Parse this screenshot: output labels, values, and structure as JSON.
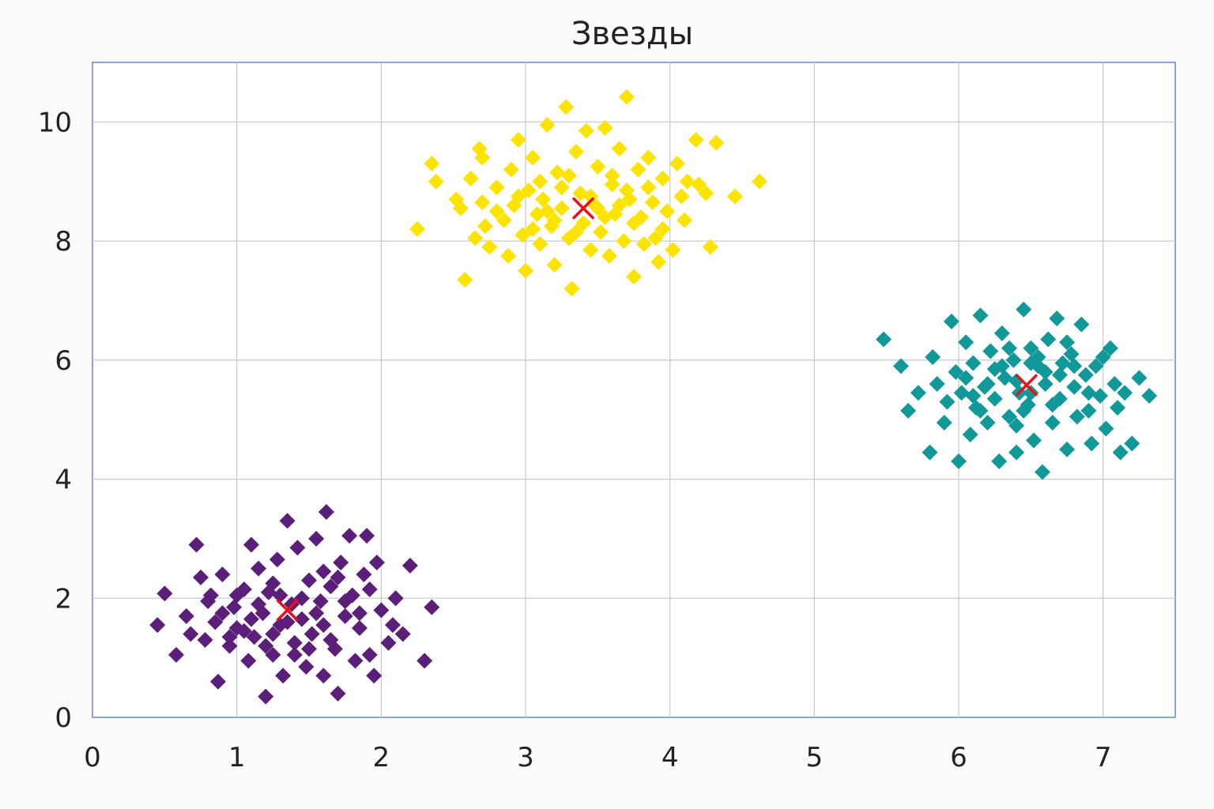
{
  "chart_data": {
    "type": "scatter",
    "title": "Звезды",
    "xlabel": "",
    "ylabel": "",
    "xlim": [
      0,
      7.5
    ],
    "ylim": [
      0,
      11
    ],
    "x_ticks": [
      0,
      1,
      2,
      3,
      4,
      5,
      6,
      7
    ],
    "y_ticks": [
      0,
      2,
      4,
      6,
      8,
      10
    ],
    "grid": true,
    "marker": "diamond",
    "centroid_marker": "x",
    "centroid_color": "#e8101a",
    "series": [
      {
        "color": "#5b1f7a",
        "center": [
          1.35,
          1.8
        ],
        "x_range": [
          0.45,
          2.35
        ],
        "y_range": [
          0.35,
          3.45
        ],
        "points": [
          [
            0.45,
            1.55
          ],
          [
            0.5,
            2.08
          ],
          [
            0.58,
            1.05
          ],
          [
            0.65,
            1.7
          ],
          [
            0.68,
            1.4
          ],
          [
            0.72,
            2.9
          ],
          [
            0.75,
            2.35
          ],
          [
            0.8,
            1.95
          ],
          [
            0.85,
            1.6
          ],
          [
            0.87,
            0.6
          ],
          [
            0.9,
            2.4
          ],
          [
            0.95,
            1.2
          ],
          [
            0.98,
            1.85
          ],
          [
            1.0,
            1.5
          ],
          [
            1.05,
            2.15
          ],
          [
            1.08,
            0.95
          ],
          [
            1.1,
            2.9
          ],
          [
            1.12,
            1.35
          ],
          [
            1.15,
            2.5
          ],
          [
            1.18,
            1.75
          ],
          [
            1.2,
            0.35
          ],
          [
            1.22,
            2.1
          ],
          [
            1.25,
            1.05
          ],
          [
            1.28,
            2.65
          ],
          [
            1.3,
            1.55
          ],
          [
            1.32,
            0.7
          ],
          [
            1.35,
            3.3
          ],
          [
            1.38,
            1.9
          ],
          [
            1.4,
            1.25
          ],
          [
            1.42,
            2.85
          ],
          [
            1.45,
            1.65
          ],
          [
            1.48,
            0.85
          ],
          [
            1.5,
            2.3
          ],
          [
            1.52,
            1.4
          ],
          [
            1.55,
            3.0
          ],
          [
            1.58,
            1.95
          ],
          [
            1.6,
            0.7
          ],
          [
            1.62,
            3.45
          ],
          [
            1.65,
            2.2
          ],
          [
            1.68,
            1.15
          ],
          [
            1.7,
            0.4
          ],
          [
            1.72,
            2.6
          ],
          [
            1.75,
            1.7
          ],
          [
            1.78,
            3.05
          ],
          [
            1.8,
            2.05
          ],
          [
            1.82,
            0.95
          ],
          [
            1.85,
            1.5
          ],
          [
            1.88,
            2.4
          ],
          [
            1.9,
            3.05
          ],
          [
            1.92,
            1.05
          ],
          [
            1.95,
            0.7
          ],
          [
            1.97,
            2.6
          ],
          [
            2.0,
            1.8
          ],
          [
            2.05,
            1.25
          ],
          [
            2.1,
            2.0
          ],
          [
            2.15,
            1.4
          ],
          [
            2.2,
            2.55
          ],
          [
            2.3,
            0.95
          ],
          [
            2.35,
            1.85
          ],
          [
            0.9,
            1.75
          ],
          [
            1.05,
            1.45
          ],
          [
            1.15,
            1.9
          ],
          [
            1.25,
            2.25
          ],
          [
            1.35,
            1.6
          ],
          [
            1.45,
            2.0
          ],
          [
            1.55,
            1.75
          ],
          [
            1.65,
            1.3
          ],
          [
            1.75,
            1.95
          ],
          [
            1.0,
            2.05
          ],
          [
            1.2,
            1.2
          ],
          [
            1.4,
            1.05
          ],
          [
            1.6,
            2.45
          ],
          [
            1.3,
            2.05
          ],
          [
            1.5,
            1.15
          ],
          [
            1.7,
            2.35
          ],
          [
            0.95,
            1.35
          ],
          [
            1.85,
            1.75
          ],
          [
            1.1,
            1.65
          ],
          [
            1.6,
            1.55
          ],
          [
            1.25,
            1.4
          ],
          [
            0.78,
            1.3
          ],
          [
            0.82,
            2.05
          ],
          [
            2.08,
            1.55
          ],
          [
            1.92,
            2.15
          ]
        ]
      },
      {
        "color": "#fde400",
        "center": [
          3.4,
          8.55
        ],
        "x_range": [
          2.25,
          4.62
        ],
        "y_range": [
          7.2,
          10.42
        ],
        "points": [
          [
            2.25,
            8.2
          ],
          [
            2.35,
            9.3
          ],
          [
            2.38,
            9.0
          ],
          [
            2.52,
            8.7
          ],
          [
            2.55,
            8.55
          ],
          [
            2.58,
            7.35
          ],
          [
            2.62,
            9.05
          ],
          [
            2.65,
            8.05
          ],
          [
            2.68,
            9.55
          ],
          [
            2.7,
            8.65
          ],
          [
            2.72,
            8.25
          ],
          [
            2.75,
            7.9
          ],
          [
            2.8,
            8.9
          ],
          [
            2.85,
            8.35
          ],
          [
            2.88,
            7.75
          ],
          [
            2.9,
            9.2
          ],
          [
            2.92,
            8.6
          ],
          [
            2.95,
            9.7
          ],
          [
            2.98,
            8.1
          ],
          [
            3.0,
            7.5
          ],
          [
            3.02,
            8.85
          ],
          [
            3.05,
            9.4
          ],
          [
            3.08,
            8.45
          ],
          [
            3.1,
            7.95
          ],
          [
            3.12,
            8.7
          ],
          [
            3.15,
            9.95
          ],
          [
            3.18,
            8.25
          ],
          [
            3.2,
            7.6
          ],
          [
            3.22,
            9.15
          ],
          [
            3.25,
            8.55
          ],
          [
            3.28,
            10.25
          ],
          [
            3.3,
            8.05
          ],
          [
            3.32,
            7.2
          ],
          [
            3.35,
            9.5
          ],
          [
            3.38,
            8.8
          ],
          [
            3.4,
            8.3
          ],
          [
            3.42,
            9.85
          ],
          [
            3.45,
            7.85
          ],
          [
            3.48,
            8.6
          ],
          [
            3.5,
            9.25
          ],
          [
            3.52,
            8.15
          ],
          [
            3.55,
            9.9
          ],
          [
            3.58,
            7.75
          ],
          [
            3.6,
            8.95
          ],
          [
            3.62,
            8.45
          ],
          [
            3.65,
            9.55
          ],
          [
            3.68,
            8.0
          ],
          [
            3.7,
            10.42
          ],
          [
            3.72,
            8.7
          ],
          [
            3.75,
            7.4
          ],
          [
            3.78,
            9.2
          ],
          [
            3.8,
            8.4
          ],
          [
            3.82,
            7.95
          ],
          [
            3.85,
            9.4
          ],
          [
            3.88,
            8.65
          ],
          [
            3.9,
            8.05
          ],
          [
            3.92,
            7.65
          ],
          [
            3.95,
            9.05
          ],
          [
            3.98,
            8.5
          ],
          [
            4.02,
            7.85
          ],
          [
            4.05,
            9.3
          ],
          [
            4.08,
            8.75
          ],
          [
            4.12,
            9.0
          ],
          [
            4.18,
            9.7
          ],
          [
            4.2,
            8.95
          ],
          [
            4.25,
            8.8
          ],
          [
            4.28,
            7.9
          ],
          [
            4.32,
            9.65
          ],
          [
            4.45,
            8.75
          ],
          [
            4.62,
            9.0
          ],
          [
            2.8,
            8.5
          ],
          [
            2.95,
            8.75
          ],
          [
            3.05,
            8.2
          ],
          [
            3.15,
            8.5
          ],
          [
            3.25,
            8.9
          ],
          [
            3.35,
            8.15
          ],
          [
            3.45,
            8.75
          ],
          [
            3.55,
            8.4
          ],
          [
            3.65,
            8.6
          ],
          [
            3.75,
            8.3
          ],
          [
            3.85,
            8.9
          ],
          [
            3.95,
            8.2
          ],
          [
            3.1,
            9.0
          ],
          [
            3.3,
            9.1
          ],
          [
            3.5,
            8.55
          ],
          [
            3.7,
            8.85
          ],
          [
            3.2,
            8.35
          ],
          [
            3.6,
            9.1
          ],
          [
            4.1,
            8.35
          ],
          [
            2.7,
            9.4
          ]
        ]
      },
      {
        "color": "#119898",
        "center": [
          6.47,
          5.58
        ],
        "x_range": [
          5.48,
          7.32
        ],
        "y_range": [
          4.1,
          6.85
        ],
        "points": [
          [
            5.48,
            6.35
          ],
          [
            5.6,
            5.9
          ],
          [
            5.65,
            5.15
          ],
          [
            5.72,
            5.45
          ],
          [
            5.8,
            4.45
          ],
          [
            5.82,
            6.05
          ],
          [
            5.85,
            5.6
          ],
          [
            5.9,
            4.95
          ],
          [
            5.92,
            5.3
          ],
          [
            5.95,
            6.65
          ],
          [
            5.98,
            5.8
          ],
          [
            6.0,
            4.3
          ],
          [
            6.02,
            5.45
          ],
          [
            6.05,
            6.3
          ],
          [
            6.08,
            4.75
          ],
          [
            6.1,
            5.95
          ],
          [
            6.12,
            5.2
          ],
          [
            6.15,
            6.75
          ],
          [
            6.18,
            5.55
          ],
          [
            6.2,
            4.95
          ],
          [
            6.22,
            6.15
          ],
          [
            6.25,
            5.35
          ],
          [
            6.28,
            4.3
          ],
          [
            6.3,
            6.45
          ],
          [
            6.32,
            5.7
          ],
          [
            6.35,
            5.05
          ],
          [
            6.38,
            6.0
          ],
          [
            6.4,
            4.45
          ],
          [
            6.42,
            5.45
          ],
          [
            6.45,
            6.85
          ],
          [
            6.48,
            5.25
          ],
          [
            6.5,
            6.2
          ],
          [
            6.52,
            4.65
          ],
          [
            6.55,
            5.9
          ],
          [
            6.58,
            4.12
          ],
          [
            6.6,
            5.6
          ],
          [
            6.62,
            6.35
          ],
          [
            6.65,
            4.95
          ],
          [
            6.68,
            6.7
          ],
          [
            6.7,
            5.35
          ],
          [
            6.72,
            5.95
          ],
          [
            6.75,
            4.5
          ],
          [
            6.78,
            6.1
          ],
          [
            6.8,
            5.55
          ],
          [
            6.82,
            5.05
          ],
          [
            6.85,
            6.6
          ],
          [
            6.88,
            5.75
          ],
          [
            6.9,
            5.15
          ],
          [
            6.92,
            4.6
          ],
          [
            6.95,
            5.9
          ],
          [
            6.98,
            5.4
          ],
          [
            7.0,
            6.05
          ],
          [
            7.02,
            4.85
          ],
          [
            7.05,
            6.2
          ],
          [
            7.08,
            5.6
          ],
          [
            7.1,
            5.2
          ],
          [
            7.12,
            4.45
          ],
          [
            7.15,
            5.45
          ],
          [
            7.2,
            4.6
          ],
          [
            7.25,
            5.7
          ],
          [
            7.32,
            5.4
          ],
          [
            6.3,
            5.9
          ],
          [
            6.4,
            5.65
          ],
          [
            6.5,
            5.45
          ],
          [
            6.6,
            5.8
          ],
          [
            6.2,
            5.6
          ],
          [
            6.45,
            5.15
          ],
          [
            6.55,
            6.05
          ],
          [
            6.35,
            6.2
          ],
          [
            6.7,
            5.75
          ],
          [
            6.25,
            5.85
          ],
          [
            6.65,
            5.25
          ],
          [
            6.1,
            5.4
          ],
          [
            6.8,
            5.9
          ],
          [
            6.4,
            4.9
          ],
          [
            6.15,
            5.15
          ],
          [
            6.75,
            6.3
          ],
          [
            6.05,
            5.7
          ],
          [
            6.9,
            5.45
          ],
          [
            6.5,
            5.95
          ]
        ]
      }
    ],
    "centroids": [
      [
        1.35,
        1.8
      ],
      [
        3.4,
        8.55
      ],
      [
        6.47,
        5.58
      ]
    ]
  }
}
